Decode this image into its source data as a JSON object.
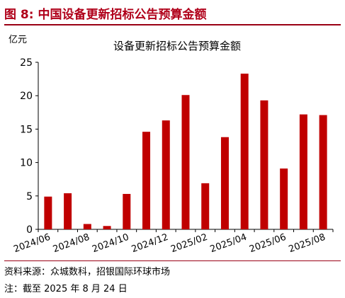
{
  "figure": {
    "title": "图 8: 中国设备更新招标公告预算金额",
    "source": "资料来源：众城数科，招银国际环球市场",
    "note": "注：截至 2025 年 8 月 24 日"
  },
  "colors": {
    "bar": "#c00000",
    "accent": "#b0001a",
    "rule": "#9a0014"
  },
  "chart_data": {
    "type": "bar",
    "title": "设备更新招标公告预算金额",
    "ylabel": "亿元",
    "xlabel": "",
    "ylim": [
      0,
      25
    ],
    "yticks": [
      0,
      5,
      10,
      15,
      20,
      25
    ],
    "categories": [
      "2024/06",
      "2024/07",
      "2024/08",
      "2024/09",
      "2024/10",
      "2024/11",
      "2024/12",
      "2025/01",
      "2025/02",
      "2025/03",
      "2025/04",
      "2025/05",
      "2025/06",
      "2025/07",
      "2025/08"
    ],
    "xtick_labels": [
      "2024/06",
      "2024/08",
      "2024/10",
      "2024/12",
      "2025/02",
      "2025/04",
      "2025/06",
      "2025/08"
    ],
    "values": [
      4.9,
      5.4,
      0.8,
      0.5,
      5.3,
      14.6,
      16.3,
      20.1,
      6.9,
      13.8,
      23.3,
      19.3,
      9.1,
      17.2,
      17.1
    ],
    "grid": false,
    "legend": "none"
  }
}
